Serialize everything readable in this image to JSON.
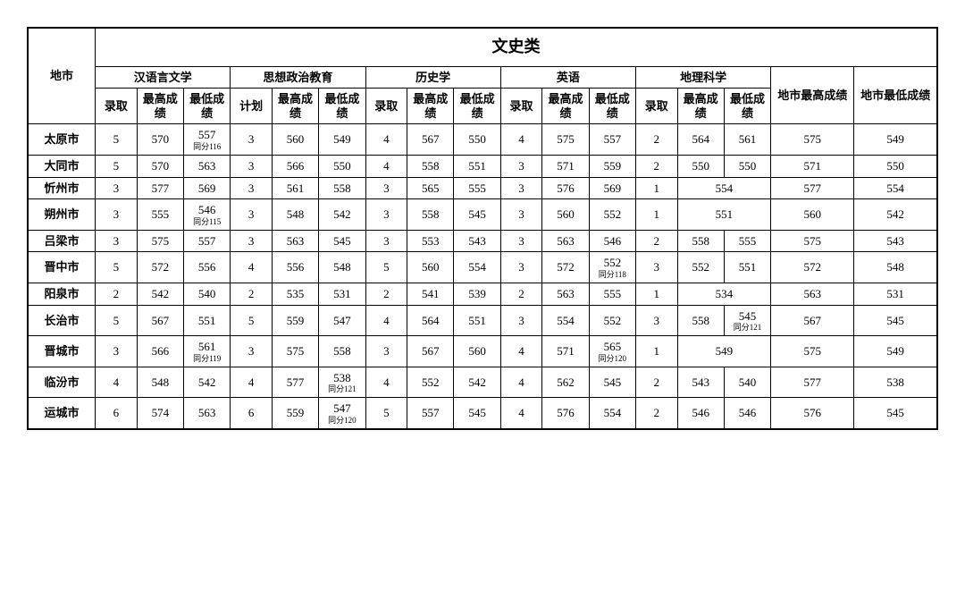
{
  "title": "文史类",
  "row_label": "地市",
  "majors": [
    "汉语言文学",
    "思想政治教育",
    "历史学",
    "英语",
    "地理科学"
  ],
  "sub_headers_a": [
    "录取",
    "最高成绩",
    "最低成绩"
  ],
  "sub_headers_b": [
    "计划",
    "最高成绩",
    "最低成绩"
  ],
  "city_high_label": "地市最高成绩",
  "city_low_label": "地市最低成绩",
  "rows": [
    {
      "city": "太原市",
      "m0": [
        "5",
        "570",
        {
          "v": "557",
          "n": "同分116"
        }
      ],
      "m1": [
        "3",
        "560",
        "549"
      ],
      "m2": [
        "4",
        "567",
        "550"
      ],
      "m3": [
        "4",
        "575",
        "557"
      ],
      "m4": [
        "2",
        "564",
        "561"
      ],
      "high": "575",
      "low": "549"
    },
    {
      "city": "大同市",
      "m0": [
        "5",
        "570",
        "563"
      ],
      "m1": [
        "3",
        "566",
        "550"
      ],
      "m2": [
        "4",
        "558",
        "551"
      ],
      "m3": [
        "3",
        "571",
        "559"
      ],
      "m4": [
        "2",
        "550",
        "550"
      ],
      "high": "571",
      "low": "550"
    },
    {
      "city": "忻州市",
      "m0": [
        "3",
        "577",
        "569"
      ],
      "m1": [
        "3",
        "561",
        "558"
      ],
      "m2": [
        "3",
        "565",
        "555"
      ],
      "m3": [
        "3",
        "576",
        "569"
      ],
      "m4": [
        "1",
        {
          "merged": "554"
        }
      ],
      "high": "577",
      "low": "554"
    },
    {
      "city": "朔州市",
      "m0": [
        "3",
        "555",
        {
          "v": "546",
          "n": "同分115"
        }
      ],
      "m1": [
        "3",
        "548",
        "542"
      ],
      "m2": [
        "3",
        "558",
        "545"
      ],
      "m3": [
        "3",
        "560",
        "552"
      ],
      "m4": [
        "1",
        {
          "merged": "551"
        }
      ],
      "high": "560",
      "low": "542"
    },
    {
      "city": "吕梁市",
      "m0": [
        "3",
        "575",
        "557"
      ],
      "m1": [
        "3",
        "563",
        "545"
      ],
      "m2": [
        "3",
        "553",
        "543"
      ],
      "m3": [
        "3",
        "563",
        "546"
      ],
      "m4": [
        "2",
        "558",
        "555"
      ],
      "high": "575",
      "low": "543"
    },
    {
      "city": "晋中市",
      "m0": [
        "5",
        "572",
        "556"
      ],
      "m1": [
        "4",
        "556",
        "548"
      ],
      "m2": [
        "5",
        "560",
        "554"
      ],
      "m3": [
        "3",
        "572",
        {
          "v": "552",
          "n": "同分118"
        }
      ],
      "m4": [
        "3",
        "552",
        "551"
      ],
      "high": "572",
      "low": "548"
    },
    {
      "city": "阳泉市",
      "m0": [
        "2",
        "542",
        "540"
      ],
      "m1": [
        "2",
        "535",
        "531"
      ],
      "m2": [
        "2",
        "541",
        "539"
      ],
      "m3": [
        "2",
        "563",
        "555"
      ],
      "m4": [
        "1",
        {
          "merged": "534"
        }
      ],
      "high": "563",
      "low": "531"
    },
    {
      "city": "长治市",
      "m0": [
        "5",
        "567",
        "551"
      ],
      "m1": [
        "5",
        "559",
        "547"
      ],
      "m2": [
        "4",
        "564",
        "551"
      ],
      "m3": [
        "3",
        "554",
        "552"
      ],
      "m4": [
        "3",
        "558",
        {
          "v": "545",
          "n": "同分121"
        }
      ],
      "high": "567",
      "low": "545"
    },
    {
      "city": "晋城市",
      "m0": [
        "3",
        "566",
        {
          "v": "561",
          "n": "同分119"
        }
      ],
      "m1": [
        "3",
        "575",
        "558"
      ],
      "m2": [
        "3",
        "567",
        "560"
      ],
      "m3": [
        "4",
        "571",
        {
          "v": "565",
          "n": "同分120"
        }
      ],
      "m4": [
        "1",
        {
          "merged": "549"
        }
      ],
      "high": "575",
      "low": "549"
    },
    {
      "city": "临汾市",
      "m0": [
        "4",
        "548",
        "542"
      ],
      "m1": [
        "4",
        "577",
        {
          "v": "538",
          "n": "同分121"
        }
      ],
      "m2": [
        "4",
        "552",
        "542"
      ],
      "m3": [
        "4",
        "562",
        "545"
      ],
      "m4": [
        "2",
        "543",
        "540"
      ],
      "high": "577",
      "low": "538"
    },
    {
      "city": "运城市",
      "m0": [
        "6",
        "574",
        "563"
      ],
      "m1": [
        "6",
        "559",
        {
          "v": "547",
          "n": "同分120"
        }
      ],
      "m2": [
        "5",
        "557",
        "545"
      ],
      "m3": [
        "4",
        "576",
        "554"
      ],
      "m4": [
        "2",
        "546",
        "546"
      ],
      "high": "576",
      "low": "545"
    }
  ]
}
